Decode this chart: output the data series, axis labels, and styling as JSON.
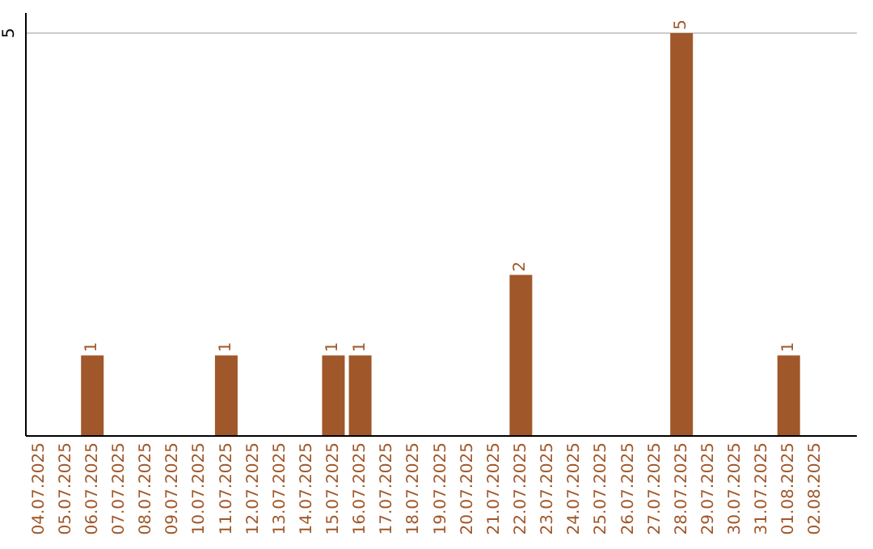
{
  "chart_data": {
    "type": "bar",
    "categories": [
      "04.07.2025",
      "05.07.2025",
      "06.07.2025",
      "07.07.2025",
      "08.07.2025",
      "09.07.2025",
      "10.07.2025",
      "11.07.2025",
      "12.07.2025",
      "13.07.2025",
      "14.07.2025",
      "15.07.2025",
      "16.07.2025",
      "17.07.2025",
      "18.07.2025",
      "19.07.2025",
      "20.07.2025",
      "21.07.2025",
      "22.07.2025",
      "23.07.2025",
      "24.07.2025",
      "25.07.2025",
      "26.07.2025",
      "27.07.2025",
      "28.07.2025",
      "29.07.2025",
      "30.07.2025",
      "31.07.2025",
      "01.08.2025",
      "02.08.2025"
    ],
    "values": [
      0,
      0,
      1,
      0,
      0,
      0,
      0,
      1,
      0,
      0,
      0,
      1,
      1,
      0,
      0,
      0,
      0,
      0,
      2,
      0,
      0,
      0,
      0,
      0,
      5,
      0,
      0,
      0,
      1,
      0
    ],
    "value_labels": [
      null,
      null,
      "1",
      null,
      null,
      null,
      null,
      "1",
      null,
      null,
      null,
      "1",
      "1",
      null,
      null,
      null,
      null,
      null,
      "2",
      null,
      null,
      null,
      null,
      null,
      "5",
      null,
      null,
      null,
      "1",
      null
    ],
    "color": "#a0572a",
    "ylim": [
      0,
      5.25
    ],
    "yticks": [
      5
    ],
    "grid": "y"
  }
}
